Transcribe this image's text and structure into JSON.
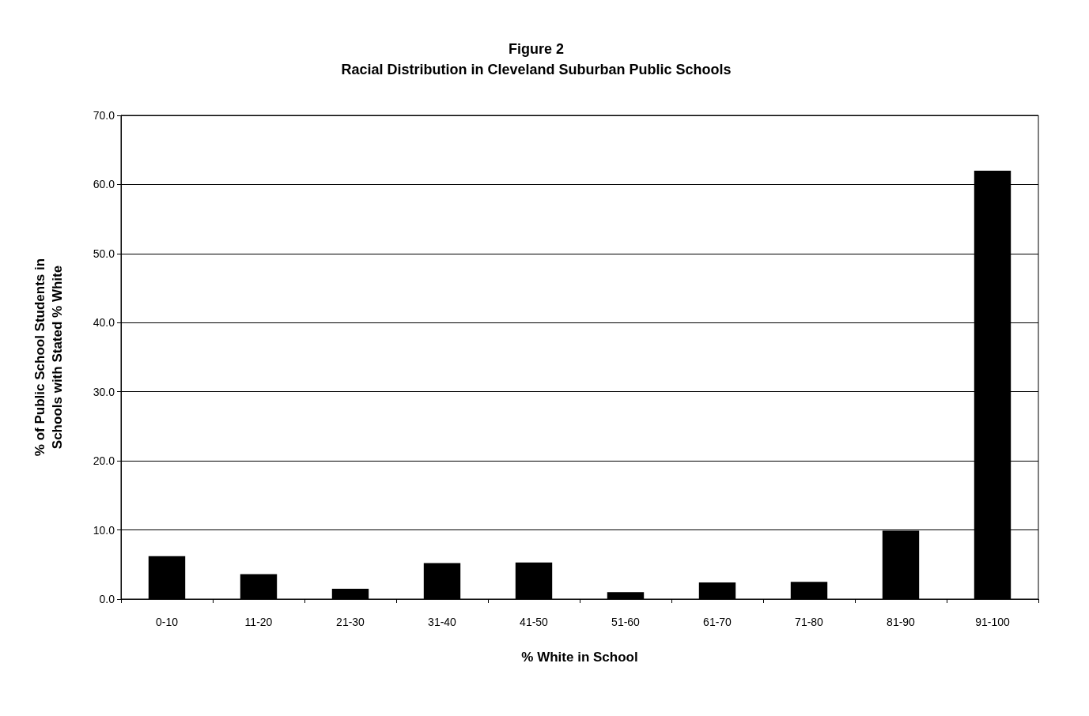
{
  "chart_data": {
    "type": "bar",
    "title": "Figure 2",
    "subtitle": "Racial Distribution in Cleveland Suburban Public Schools",
    "xlabel": "% White in School",
    "ylabel": "% of Public School Students in\nSchools with Stated % White",
    "categories": [
      "0-10",
      "11-20",
      "21-30",
      "31-40",
      "41-50",
      "51-60",
      "61-70",
      "71-80",
      "81-90",
      "91-100"
    ],
    "values": [
      6.2,
      3.6,
      1.5,
      5.2,
      5.3,
      1.0,
      2.4,
      2.5,
      9.9,
      62.0
    ],
    "color": "#000000",
    "ylim": [
      0,
      70
    ],
    "yticks": [
      {
        "value": 0,
        "label": "0.0"
      },
      {
        "value": 10,
        "label": "10.0"
      },
      {
        "value": 20,
        "label": "20.0"
      },
      {
        "value": 30,
        "label": "30.0"
      },
      {
        "value": 40,
        "label": "40.0"
      },
      {
        "value": 50,
        "label": "50.0"
      },
      {
        "value": 60,
        "label": "60.0"
      },
      {
        "value": 70,
        "label": "70.0"
      }
    ],
    "grid": "y"
  }
}
